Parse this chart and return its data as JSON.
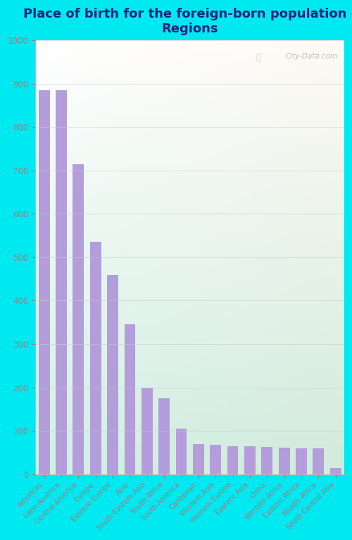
{
  "title": "Place of birth for the foreign-born population -\nRegions",
  "categories": [
    "Americas",
    "Latin America",
    "Central America",
    "Europe",
    "Eastern Europe",
    "Asia",
    "South Eastern Asia",
    "South Africa",
    "South America",
    "Caribbean",
    "Western Asia",
    "Western Europe",
    "Eastern Asia",
    "China",
    "Western Africa",
    "Eastern Africa",
    "Middle Africa",
    "South Central Asia"
  ],
  "values": [
    885,
    885,
    715,
    535,
    460,
    345,
    200,
    175,
    105,
    70,
    68,
    65,
    65,
    63,
    62,
    60,
    60,
    15
  ],
  "bar_color": "#b39ddb",
  "outer_bg_color": "#00e8f0",
  "ylim": [
    0,
    1000
  ],
  "yticks": [
    0,
    100,
    200,
    300,
    400,
    500,
    600,
    700,
    800,
    900,
    1000
  ],
  "title_fontsize": 13,
  "title_color": "#1a237e",
  "tick_color": "#888888",
  "watermark": "City-Data.com",
  "grid_color": "#cccccc"
}
